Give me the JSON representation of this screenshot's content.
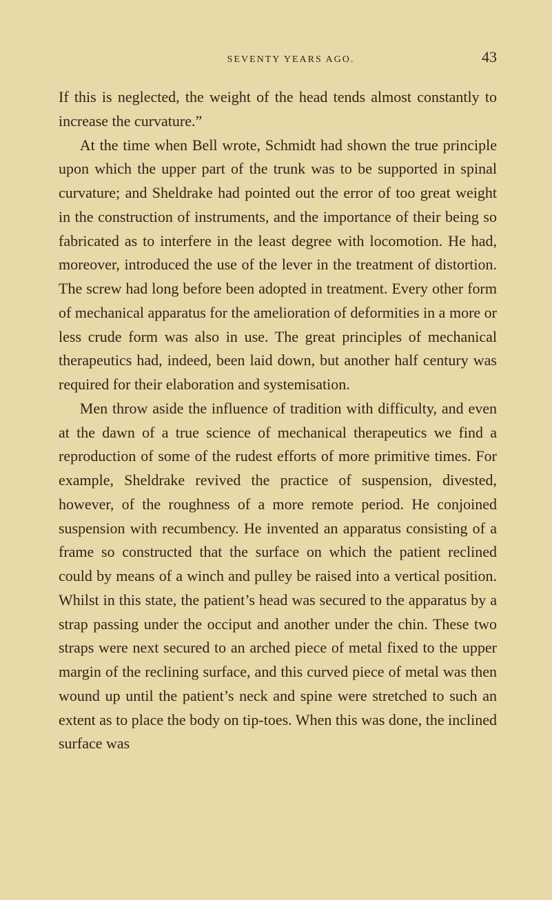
{
  "page": {
    "running_title": "SEVENTY YEARS AGO.",
    "number": "43"
  },
  "paragraphs": {
    "p1": "If this is neglected, the weight of the head tends almost constantly to increase the curvature.”",
    "p2": "At the time when Bell wrote, Schmidt had shown the true principle upon which the upper part of the trunk was to be supported in spinal curvature; and Sheldrake had pointed out the error of too great weight in the construction of instruments, and the importance of their being so fabricated as to interfere in the least degree with locomotion. He had, moreover, introduced the use of the lever in the treatment of distortion. The screw had long before been adopted in treatment. Every other form of mechanical apparatus for the amelioration of deformities in a more or less crude form was also in use. The great principles of mechanical therapeutics had, indeed, been laid down, but another half century was required for their elaboration and systemisation.",
    "p3": "Men throw aside the influence of tradition with difficulty, and even at the dawn of a true science of mechanical therapeutics we find a reproduction of some of the rudest efforts of more primitive times. For example, Sheldrake revived the practice of suspension, divested, however, of the roughness of a more remote period. He conjoined suspension with recumbency. He invented an apparatus consisting of a frame so constructed that the surface on which the patient reclined could by means of a winch and pulley be raised into a vertical position. Whilst in this state, the patient’s head was secured to the apparatus by a strap passing under the occiput and another under the chin. These two straps were next secured to an arched piece of metal fixed to the upper margin of the reclining surface, and this curved piece of metal was then wound up until the patient’s neck and spine were stretched to such an extent as to place the body on tip-toes. When this was done, the inclined surface was"
  }
}
